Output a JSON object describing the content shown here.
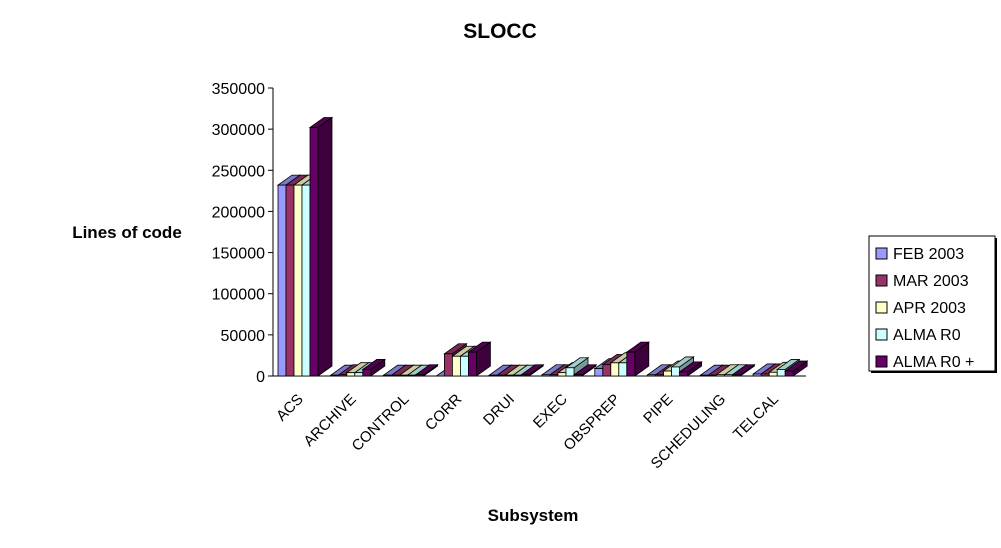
{
  "chart_data": {
    "type": "bar",
    "style": "3d-clustered-column",
    "title": "SLOCC",
    "xlabel": "Subsystem",
    "ylabel": "Lines of code",
    "ylim": [
      0,
      350000
    ],
    "yticks": [
      0,
      50000,
      100000,
      150000,
      200000,
      250000,
      300000,
      350000
    ],
    "ytick_labels": [
      "0",
      "50000",
      "100000",
      "150000",
      "200000",
      "250000",
      "300000",
      "350000"
    ],
    "grid": false,
    "legend_position": "right",
    "categories": [
      "ACS",
      "ARCHIVE",
      "CONTROL",
      "CORR",
      "DRUI",
      "EXEC",
      "OBSPREP",
      "PIPE",
      "SCHEDULING",
      "TELCAL"
    ],
    "series": [
      {
        "name": "FEB 2003",
        "color": "#9999ff",
        "values": [
          232000,
          1000,
          1000,
          0,
          1000,
          1500,
          9000,
          1500,
          1000,
          2500
        ]
      },
      {
        "name": "MAR 2003",
        "color": "#993366",
        "values": [
          232000,
          1500,
          1000,
          27000,
          1000,
          1500,
          14000,
          1500,
          1000,
          2500
        ]
      },
      {
        "name": "APR 2003",
        "color": "#ffffcc",
        "values": [
          232000,
          4000,
          1000,
          24000,
          1000,
          4000,
          16000,
          6000,
          1500,
          4500
        ]
      },
      {
        "name": "ALMA R0",
        "color": "#ccffff",
        "values": [
          232000,
          4000,
          1000,
          24000,
          1000,
          10000,
          16000,
          11000,
          1500,
          8000
        ]
      },
      {
        "name": "ALMA R0 +",
        "color": "#660066",
        "values": [
          302000,
          8000,
          1500,
          29000,
          1500,
          1500,
          29000,
          5000,
          1500,
          6000
        ]
      }
    ]
  }
}
